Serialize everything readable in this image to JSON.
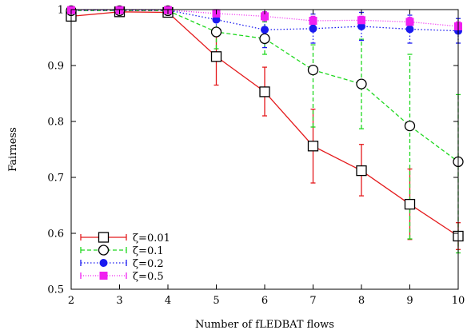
{
  "chart_data": {
    "type": "line",
    "title": "",
    "xlabel": "Number of fLEDBAT flows",
    "ylabel": "Fairness",
    "x": [
      2,
      3,
      4,
      5,
      6,
      7,
      8,
      9,
      10
    ],
    "xlim": [
      2,
      10
    ],
    "ylim": [
      0.5,
      1.0
    ],
    "x_ticks": [
      "2",
      "3",
      "4",
      "5",
      "6",
      "7",
      "8",
      "9",
      "10"
    ],
    "y_ticks": [
      {
        "value": 0.5,
        "label": "0.5"
      },
      {
        "value": 0.6,
        "label": "0.6"
      },
      {
        "value": 0.7,
        "label": "0.7"
      },
      {
        "value": 0.8,
        "label": "0.8"
      },
      {
        "value": 0.9,
        "label": "0.9"
      },
      {
        "value": 1.0,
        "label": "1"
      }
    ],
    "grid": false,
    "legend_position": "bottom-left",
    "series": [
      {
        "name": "ζ=0.01",
        "color": "#e41a1c",
        "dash": "solid",
        "marker": "open-square",
        "values": [
          0.988,
          0.996,
          0.995,
          0.916,
          0.853,
          0.756,
          0.712,
          0.652,
          0.595
        ],
        "err_low": [
          0.981,
          0.992,
          0.99,
          0.865,
          0.81,
          0.69,
          0.667,
          0.589,
          0.571
        ],
        "err_high": [
          0.994,
          0.999,
          0.999,
          0.963,
          0.897,
          0.822,
          0.759,
          0.715,
          0.619
        ]
      },
      {
        "name": "ζ=0.1",
        "color": "#1fd81f",
        "dash": "dashed",
        "marker": "open-circle",
        "values": [
          0.998,
          0.998,
          0.998,
          0.96,
          0.948,
          0.892,
          0.867,
          0.792,
          0.728
        ],
        "err_low": [
          0.995,
          0.996,
          0.996,
          0.93,
          0.92,
          0.79,
          0.787,
          0.59,
          0.565
        ],
        "err_high": [
          1.0,
          1.0,
          1.0,
          0.99,
          0.978,
          0.937,
          0.947,
          0.92,
          0.848
        ]
      },
      {
        "name": "ζ=0.2",
        "color": "#1a1af0",
        "dash": "dotted",
        "marker": "filled-circle",
        "values": [
          0.999,
          0.999,
          0.999,
          0.982,
          0.964,
          0.966,
          0.97,
          0.965,
          0.962
        ],
        "err_low": [
          0.997,
          0.997,
          0.997,
          0.966,
          0.932,
          0.94,
          0.945,
          0.94,
          0.94
        ],
        "err_high": [
          1.0,
          1.0,
          1.0,
          0.998,
          0.996,
          0.992,
          0.995,
          0.99,
          0.984
        ]
      },
      {
        "name": "ζ=0.5",
        "color": "#f020f0",
        "dash": "dashdot",
        "marker": "filled-square",
        "values": [
          0.999,
          0.999,
          0.999,
          0.993,
          0.988,
          0.98,
          0.981,
          0.978,
          0.97
        ],
        "err_low": [
          0.998,
          0.998,
          0.998,
          0.985,
          0.98,
          0.972,
          0.974,
          0.97,
          0.962
        ],
        "err_high": [
          1.0,
          1.0,
          1.0,
          1.0,
          0.996,
          0.988,
          0.988,
          0.986,
          0.978
        ]
      }
    ]
  }
}
